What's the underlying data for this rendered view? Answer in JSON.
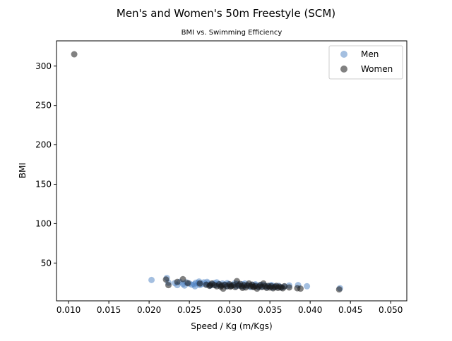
{
  "chart_data": {
    "type": "scatter",
    "title": "Men's and Women's 50m Freestyle (SCM)",
    "subtitle": "BMI vs. Swimming Efficiency",
    "xlabel": "Speed / Kg (m/Kgs)",
    "ylabel": "BMI",
    "xlim": [
      0.0085,
      0.052
    ],
    "ylim": [
      2,
      332
    ],
    "xticks": [
      0.01,
      0.015,
      0.02,
      0.025,
      0.03,
      0.035,
      0.04,
      0.045,
      0.05
    ],
    "xtick_labels": [
      "0.010",
      "0.015",
      "0.020",
      "0.025",
      "0.030",
      "0.035",
      "0.040",
      "0.045",
      "0.050"
    ],
    "yticks": [
      50,
      100,
      150,
      200,
      250,
      300
    ],
    "ytick_labels": [
      "50",
      "100",
      "150",
      "200",
      "250",
      "300"
    ],
    "grid": false,
    "legend_position": "top-right",
    "series": [
      {
        "name": "Men",
        "color": "#4a7fc1",
        "alpha": 0.5,
        "points": [
          [
            0.0203,
            28.5
          ],
          [
            0.0222,
            31.0
          ],
          [
            0.0224,
            25.0
          ],
          [
            0.0232,
            24.5
          ],
          [
            0.0235,
            22.0
          ],
          [
            0.0238,
            26.0
          ],
          [
            0.0242,
            23.5
          ],
          [
            0.0246,
            25.5
          ],
          [
            0.025,
            24.0
          ],
          [
            0.0253,
            22.5
          ],
          [
            0.0256,
            23.0
          ],
          [
            0.0258,
            25.0
          ],
          [
            0.0261,
            24.5
          ],
          [
            0.0263,
            22.0
          ],
          [
            0.0266,
            23.5
          ],
          [
            0.0268,
            25.5
          ],
          [
            0.0271,
            22.5
          ],
          [
            0.0273,
            24.0
          ],
          [
            0.0276,
            21.5
          ],
          [
            0.0278,
            23.0
          ],
          [
            0.0281,
            24.5
          ],
          [
            0.0283,
            22.0
          ],
          [
            0.0286,
            23.5
          ],
          [
            0.0288,
            21.5
          ],
          [
            0.0291,
            24.0
          ],
          [
            0.0293,
            22.5
          ],
          [
            0.0296,
            20.5
          ],
          [
            0.0298,
            23.0
          ],
          [
            0.0301,
            21.5
          ],
          [
            0.0303,
            22.0
          ],
          [
            0.0306,
            24.0
          ],
          [
            0.0308,
            20.5
          ],
          [
            0.0311,
            22.5
          ],
          [
            0.0313,
            21.0
          ],
          [
            0.0316,
            23.0
          ],
          [
            0.0318,
            20.0
          ],
          [
            0.0321,
            22.0
          ],
          [
            0.0323,
            21.5
          ],
          [
            0.0326,
            19.5
          ],
          [
            0.0328,
            22.5
          ],
          [
            0.0331,
            20.5
          ],
          [
            0.0333,
            21.5
          ],
          [
            0.0336,
            19.5
          ],
          [
            0.0338,
            21.0
          ],
          [
            0.0341,
            20.0
          ],
          [
            0.0343,
            22.0
          ],
          [
            0.0346,
            19.5
          ],
          [
            0.0348,
            20.5
          ],
          [
            0.0351,
            21.0
          ],
          [
            0.0353,
            19.0
          ],
          [
            0.0356,
            20.5
          ],
          [
            0.0358,
            19.5
          ],
          [
            0.0361,
            21.0
          ],
          [
            0.0364,
            19.0
          ],
          [
            0.0368,
            20.0
          ],
          [
            0.0374,
            21.5
          ],
          [
            0.0385,
            22.0
          ],
          [
            0.0396,
            20.5
          ],
          [
            0.0437,
            18.0
          ],
          [
            0.0262,
            26.5
          ],
          [
            0.0272,
            26.0
          ],
          [
            0.0284,
            25.5
          ],
          [
            0.0297,
            24.5
          ],
          [
            0.0309,
            23.5
          ],
          [
            0.0319,
            24.0
          ],
          [
            0.0332,
            23.0
          ],
          [
            0.0339,
            22.5
          ],
          [
            0.0352,
            22.0
          ],
          [
            0.0244,
            21.5
          ],
          [
            0.0257,
            20.5
          ]
        ]
      },
      {
        "name": "Women",
        "color": "#1a1a1a",
        "alpha": 0.55,
        "points": [
          [
            0.0107,
            315.0
          ],
          [
            0.0221,
            29.0
          ],
          [
            0.0224,
            22.0
          ],
          [
            0.0235,
            26.0
          ],
          [
            0.0242,
            29.5
          ],
          [
            0.0248,
            24.5
          ],
          [
            0.0263,
            24.0
          ],
          [
            0.0271,
            22.5
          ],
          [
            0.0275,
            21.0
          ],
          [
            0.0278,
            24.0
          ],
          [
            0.0281,
            22.0
          ],
          [
            0.0284,
            20.5
          ],
          [
            0.0287,
            23.0
          ],
          [
            0.029,
            21.5
          ],
          [
            0.0292,
            17.5
          ],
          [
            0.0294,
            22.5
          ],
          [
            0.0297,
            20.5
          ],
          [
            0.03,
            23.0
          ],
          [
            0.0302,
            21.0
          ],
          [
            0.0305,
            22.0
          ],
          [
            0.0307,
            19.5
          ],
          [
            0.0309,
            27.0
          ],
          [
            0.0311,
            21.5
          ],
          [
            0.0313,
            23.5
          ],
          [
            0.0315,
            20.5
          ],
          [
            0.0318,
            22.0
          ],
          [
            0.032,
            19.0
          ],
          [
            0.0322,
            21.5
          ],
          [
            0.0324,
            24.0
          ],
          [
            0.0326,
            20.5
          ],
          [
            0.0328,
            22.5
          ],
          [
            0.033,
            19.5
          ],
          [
            0.0332,
            21.0
          ],
          [
            0.0334,
            17.5
          ],
          [
            0.0336,
            20.0
          ],
          [
            0.0338,
            22.0
          ],
          [
            0.034,
            19.5
          ],
          [
            0.0342,
            24.0
          ],
          [
            0.0344,
            20.5
          ],
          [
            0.0346,
            18.5
          ],
          [
            0.0348,
            21.0
          ],
          [
            0.035,
            19.0
          ],
          [
            0.0352,
            20.5
          ],
          [
            0.0354,
            18.0
          ],
          [
            0.0356,
            19.5
          ],
          [
            0.0358,
            21.0
          ],
          [
            0.036,
            18.5
          ],
          [
            0.0362,
            20.0
          ],
          [
            0.0364,
            19.0
          ],
          [
            0.0366,
            18.0
          ],
          [
            0.0368,
            20.5
          ],
          [
            0.0374,
            19.0
          ],
          [
            0.0384,
            18.0
          ],
          [
            0.0388,
            17.5
          ],
          [
            0.0436,
            16.5
          ],
          [
            0.0276,
            22.0
          ],
          [
            0.0289,
            20.0
          ],
          [
            0.0301,
            20.0
          ],
          [
            0.0316,
            18.5
          ],
          [
            0.0329,
            20.0
          ]
        ]
      }
    ]
  }
}
